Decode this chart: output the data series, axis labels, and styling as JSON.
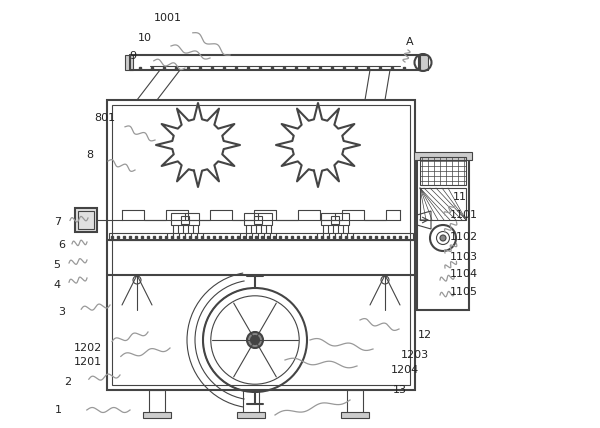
{
  "bg_color": "#ffffff",
  "line_color": "#444444",
  "lw_main": 1.5,
  "lw_thin": 0.8,
  "label_fs": 8,
  "wc": "#999999"
}
